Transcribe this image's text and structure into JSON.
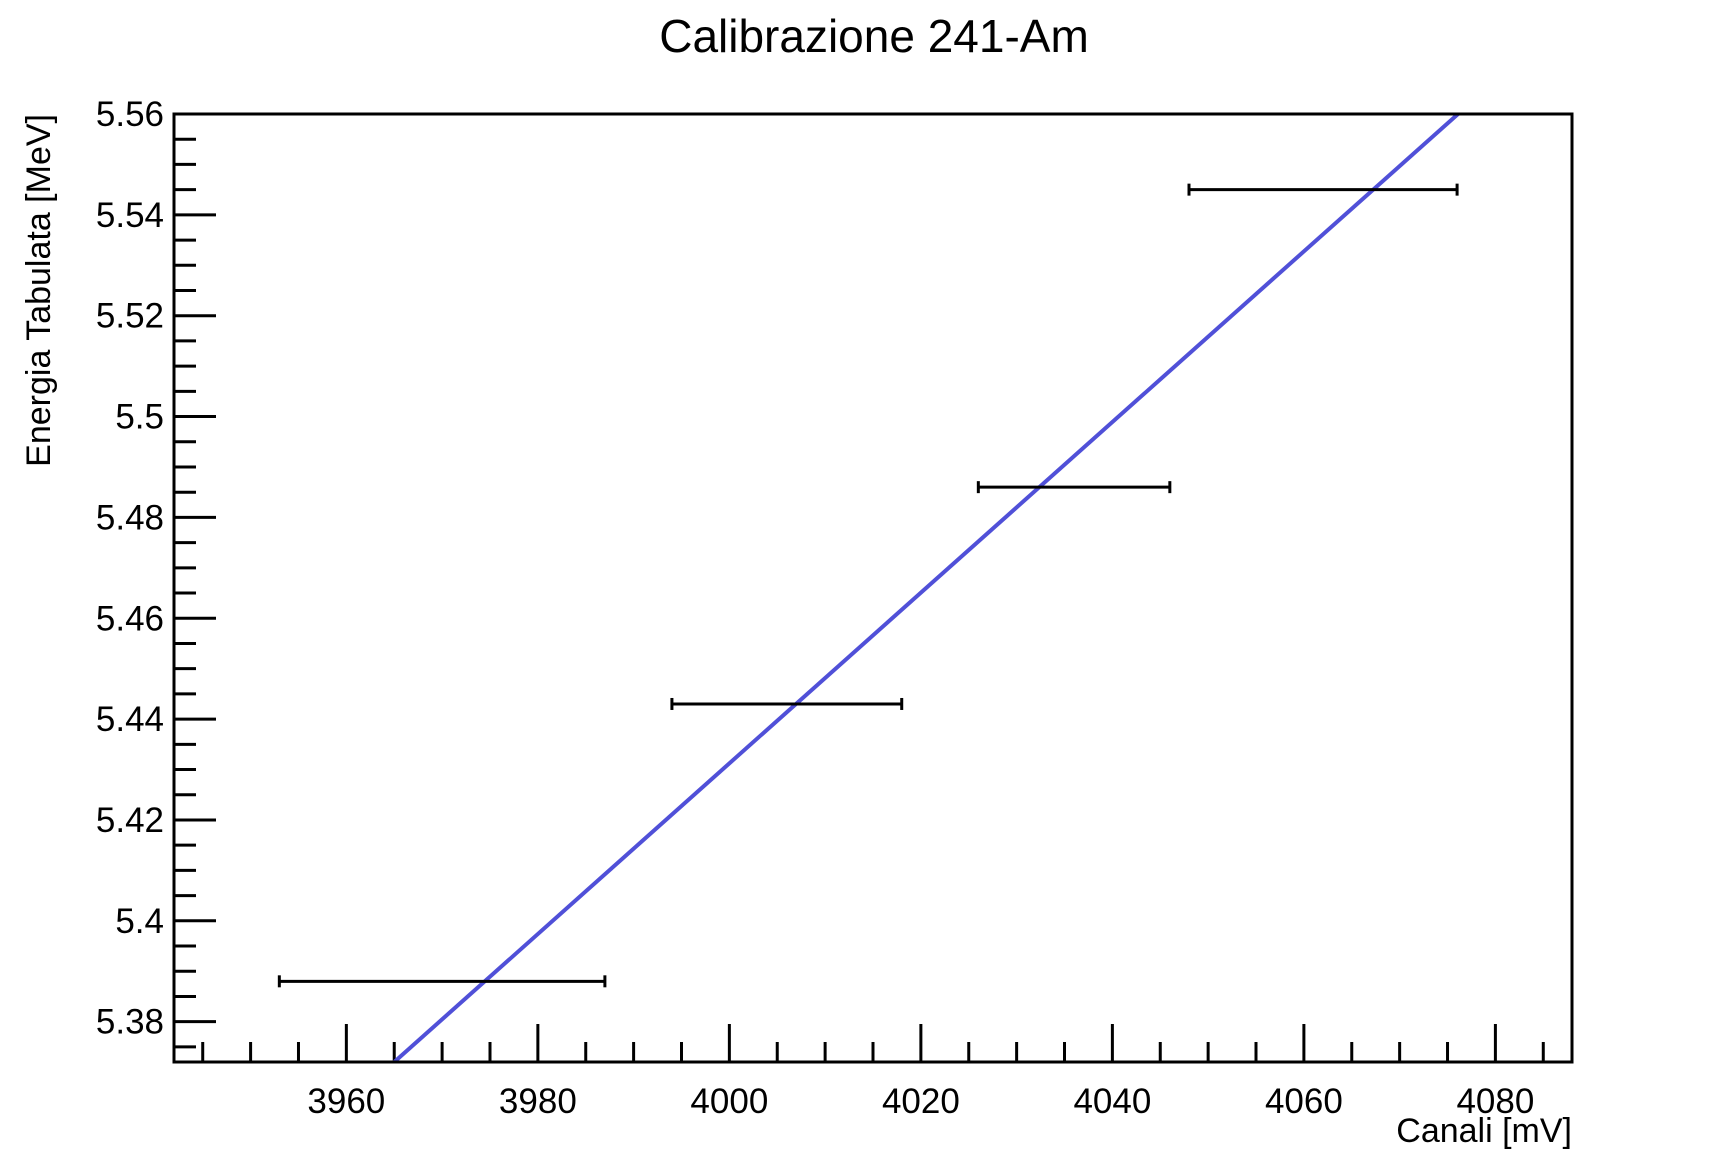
{
  "chart_data": {
    "type": "scatter",
    "title": "Calibrazione 241-Am",
    "xlabel": "Canali [mV]",
    "ylabel": "Energia Tabulata [MeV]",
    "xlim": [
      3942,
      4088
    ],
    "ylim": [
      5.372,
      5.56
    ],
    "x_ticks": [
      {
        "value": 3960,
        "label": "3960"
      },
      {
        "value": 3980,
        "label": "3980"
      },
      {
        "value": 4000,
        "label": "4000"
      },
      {
        "value": 4020,
        "label": "4020"
      },
      {
        "value": 4040,
        "label": "4040"
      },
      {
        "value": 4060,
        "label": "4060"
      },
      {
        "value": 4080,
        "label": "4080"
      }
    ],
    "y_ticks": [
      {
        "value": 5.38,
        "label": "5.38"
      },
      {
        "value": 5.4,
        "label": "5.4"
      },
      {
        "value": 5.42,
        "label": "5.42"
      },
      {
        "value": 5.44,
        "label": "5.44"
      },
      {
        "value": 5.46,
        "label": "5.46"
      },
      {
        "value": 5.48,
        "label": "5.48"
      },
      {
        "value": 5.5,
        "label": "5.5"
      },
      {
        "value": 5.52,
        "label": "5.52"
      },
      {
        "value": 5.54,
        "label": "5.54"
      },
      {
        "value": 5.56,
        "label": "5.56"
      }
    ],
    "points": [
      {
        "x": 3970,
        "xerr": 17,
        "y": 5.388
      },
      {
        "x": 4006,
        "xerr": 12,
        "y": 5.443
      },
      {
        "x": 4036,
        "xerr": 10,
        "y": 5.486
      },
      {
        "x": 4062,
        "xerr": 14,
        "y": 5.545
      }
    ],
    "fit_line": {
      "x": [
        3965.0,
        4076.1
      ],
      "y": [
        5.372,
        5.56
      ],
      "color": "#5050d8"
    },
    "point_color": "#000000",
    "grid": false,
    "legend": "none"
  }
}
